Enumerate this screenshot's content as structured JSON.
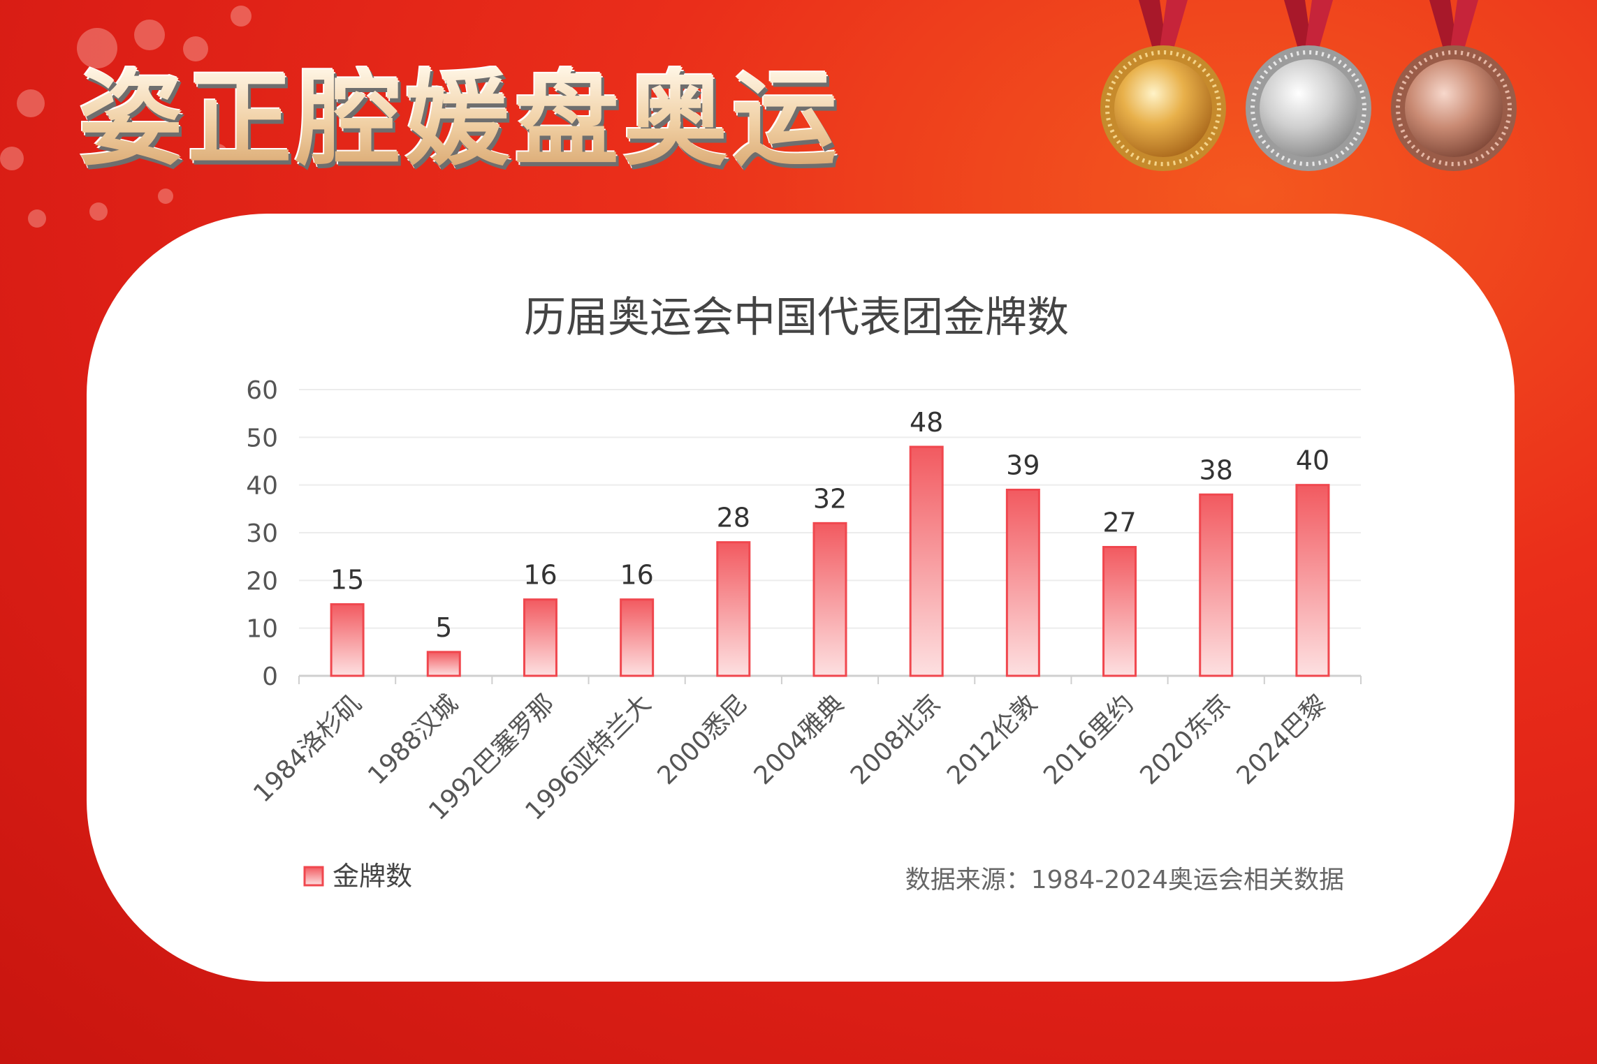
{
  "banner": {
    "title": "姿正腔媛盘奥运"
  },
  "medals": [
    {
      "name": "gold",
      "color": "#e0a33a",
      "ribbon": "#b3202a"
    },
    {
      "name": "silver",
      "color": "#c9c9c9",
      "ribbon": "#b3202a"
    },
    {
      "name": "bronze",
      "color": "#c98a73",
      "ribbon": "#b3202a"
    }
  ],
  "chart_data": {
    "type": "bar",
    "title": "历届奥运会中国代表团金牌数",
    "categories": [
      "1984洛杉矶",
      "1988汉城",
      "1992巴塞罗那",
      "1996亚特兰大",
      "2000悉尼",
      "2004雅典",
      "2008北京",
      "2012伦敦",
      "2016里约",
      "2020东京",
      "2024巴黎"
    ],
    "series": [
      {
        "name": "金牌数",
        "values": [
          15,
          5,
          16,
          16,
          28,
          32,
          48,
          39,
          27,
          38,
          40
        ]
      }
    ],
    "yticks": [
      "0",
      "10",
      "20",
      "30",
      "40",
      "50",
      "60"
    ],
    "ylim": [
      0,
      60
    ],
    "grid": true,
    "legend": "bottom-left",
    "bar_color": "#f0474e",
    "source": "数据来源：1984-2024奥运会相关数据"
  }
}
